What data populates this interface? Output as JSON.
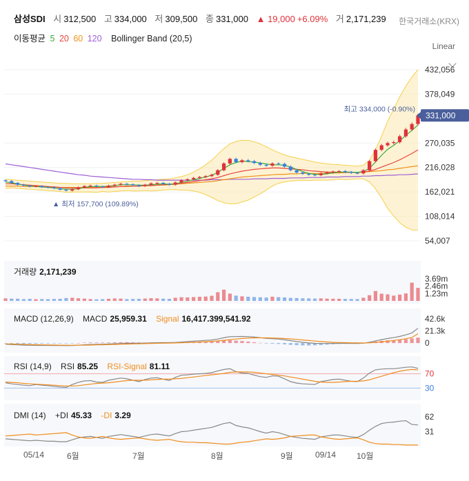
{
  "header": {
    "title": "삼성SDI",
    "open_label": "시",
    "open": "312,500",
    "high_label": "고",
    "high": "334,000",
    "low_label": "저",
    "low": "309,500",
    "close_label": "종",
    "close": "331,000",
    "change": "▲ 19,000",
    "change_pct": "+6.09%",
    "volume_label": "거",
    "volume": "2,171,239",
    "exchange": "한국거래소(KRX)"
  },
  "indicators": {
    "ma_label": "이동평균",
    "ma": [
      {
        "period": "5",
        "color": "#3aaa35"
      },
      {
        "period": "20",
        "color": "#e8453c"
      },
      {
        "period": "60",
        "color": "#f0911c"
      },
      {
        "period": "120",
        "color": "#9c5fd6"
      }
    ],
    "bollinger": "Bollinger Band (20,5)"
  },
  "scale_mode": "Linear",
  "colors": {
    "up": "#e0313a",
    "down": "#3b7ddd",
    "band": "#fbe9b0",
    "band_line": "#f5cf4a",
    "price_tag": "#4a5f9c"
  },
  "chart_data": {
    "type": "line",
    "x_ticks": [
      "05/14",
      "6월",
      "7월",
      "8월",
      "9월",
      "09/14",
      "10월"
    ],
    "main": {
      "ylim": [
        54007,
        432056
      ],
      "y_ticks": [
        "432,056",
        "378,049",
        "270,035",
        "216,028",
        "162,021",
        "108,014",
        "54,007"
      ],
      "current_price": "331,000",
      "high_annotation": "최고 334,000 (-0.90%)",
      "low_annotation": "▲ 최저 157,700 (109.89%)",
      "close": [
        186000,
        182000,
        178000,
        176000,
        174000,
        175000,
        173000,
        172000,
        170000,
        167000,
        165000,
        168000,
        172000,
        175000,
        176000,
        174000,
        173000,
        176000,
        178000,
        180000,
        179000,
        177000,
        175000,
        178000,
        181000,
        182000,
        180000,
        178000,
        183000,
        188000,
        190000,
        193000,
        195000,
        197000,
        200000,
        210000,
        225000,
        235000,
        228000,
        232000,
        230000,
        226000,
        222000,
        220000,
        225000,
        224000,
        218000,
        210000,
        205000,
        202000,
        200000,
        199000,
        203000,
        205000,
        207000,
        208000,
        206000,
        204000,
        203000,
        210000,
        230000,
        255000,
        265000,
        270000,
        272000,
        285000,
        300000,
        312000,
        331000
      ],
      "ma5": [
        184000,
        182000,
        180000,
        177000,
        175000,
        174000,
        173000,
        172000,
        171000,
        169000,
        168000,
        168000,
        169000,
        172000,
        174000,
        174000,
        174000,
        175000,
        176000,
        178000,
        178000,
        178000,
        177000,
        177000,
        178000,
        179000,
        180000,
        179000,
        180000,
        183000,
        186000,
        189000,
        192000,
        195000,
        199000,
        205000,
        214000,
        222000,
        227000,
        230000,
        229000,
        228000,
        226000,
        224000,
        222000,
        222000,
        221000,
        217000,
        212000,
        207000,
        203000,
        201000,
        201000,
        202000,
        204000,
        206000,
        206000,
        206000,
        205000,
        207000,
        214000,
        228000,
        243000,
        256000,
        265000,
        275000,
        287000,
        298000,
        310000
      ],
      "ma20": [
        180000,
        180000,
        179000,
        178000,
        177000,
        176000,
        175000,
        174000,
        173000,
        172000,
        171000,
        171000,
        171000,
        171000,
        171000,
        171000,
        172000,
        172000,
        173000,
        174000,
        175000,
        175000,
        175000,
        176000,
        176000,
        177000,
        178000,
        179000,
        180000,
        181000,
        183000,
        185000,
        187000,
        189000,
        191000,
        194000,
        198000,
        202000,
        205000,
        208000,
        210000,
        212000,
        213000,
        214000,
        215000,
        215000,
        214000,
        213000,
        212000,
        211000,
        209000,
        208000,
        207000,
        206000,
        206000,
        206000,
        205000,
        205000,
        205000,
        206000,
        208000,
        212000,
        217000,
        222000,
        227000,
        233000,
        240000,
        247000,
        255000
      ],
      "ma60": [
        175000,
        175000,
        175000,
        174000,
        174000,
        174000,
        173000,
        173000,
        173000,
        172000,
        172000,
        172000,
        172000,
        172000,
        172000,
        172000,
        173000,
        173000,
        173000,
        174000,
        174000,
        175000,
        175000,
        176000,
        176000,
        177000,
        177000,
        178000,
        179000,
        180000,
        181000,
        182000,
        183000,
        184000,
        185000,
        187000,
        189000,
        191000,
        193000,
        195000,
        196000,
        197000,
        198000,
        199000,
        200000,
        201000,
        201000,
        202000,
        202000,
        203000,
        203000,
        203000,
        203000,
        204000,
        204000,
        204000,
        205000,
        205000,
        205000,
        206000,
        207000,
        208000,
        209000,
        211000,
        212000,
        214000,
        216000,
        218000,
        220000
      ],
      "ma120": [
        224000,
        222000,
        220000,
        218000,
        216000,
        214000,
        212000,
        210000,
        208000,
        206000,
        204000,
        202000,
        200000,
        199000,
        197000,
        196000,
        195000,
        194000,
        193000,
        192000,
        191000,
        190000,
        190000,
        189000,
        189000,
        188000,
        188000,
        188000,
        188000,
        188000,
        188000,
        188000,
        188000,
        188000,
        189000,
        189000,
        189000,
        190000,
        190000,
        190000,
        190000,
        191000,
        191000,
        191000,
        192000,
        192000,
        192000,
        193000,
        193000,
        193000,
        194000,
        194000,
        194000,
        195000,
        195000,
        195000,
        196000,
        196000,
        196000,
        197000,
        197000,
        198000,
        198000,
        199000,
        199000,
        200000,
        200000,
        201000,
        202000
      ],
      "bb_upper": [
        190000,
        189000,
        188000,
        187000,
        186000,
        185000,
        184000,
        183000,
        182000,
        181000,
        181000,
        180000,
        180000,
        180000,
        180000,
        181000,
        181000,
        182000,
        183000,
        184000,
        185000,
        186000,
        186000,
        187000,
        188000,
        189000,
        190000,
        191000,
        193000,
        196000,
        200000,
        206000,
        213000,
        222000,
        232000,
        245000,
        258000,
        268000,
        274000,
        276000,
        276000,
        273000,
        268000,
        262000,
        255000,
        249000,
        244000,
        240000,
        237000,
        234000,
        231000,
        228000,
        226000,
        224000,
        223000,
        222000,
        221000,
        220000,
        219000,
        221000,
        232000,
        255000,
        285000,
        318000,
        345000,
        372000,
        396000,
        416000,
        432000
      ],
      "bb_lower": [
        170000,
        171000,
        170000,
        169000,
        168000,
        167000,
        166000,
        165000,
        164000,
        163000,
        161000,
        162000,
        162000,
        162000,
        162000,
        161000,
        163000,
        162000,
        163000,
        164000,
        165000,
        164000,
        164000,
        165000,
        164000,
        165000,
        166000,
        167000,
        167000,
        166000,
        166000,
        164000,
        161000,
        156000,
        150000,
        143000,
        138000,
        136000,
        136000,
        140000,
        144000,
        151000,
        158000,
        166000,
        175000,
        181000,
        184000,
        186000,
        187000,
        188000,
        187000,
        188000,
        188000,
        188000,
        189000,
        190000,
        189000,
        190000,
        191000,
        191000,
        184000,
        169000,
        149000,
        126000,
        109000,
        94000,
        84000,
        78000,
        78000
      ]
    },
    "volume": {
      "label": "거래량",
      "value": "2,171,239",
      "y_ticks": [
        "3.69m",
        "2.46m",
        "1.23m"
      ],
      "ylim": [
        0,
        3690000
      ],
      "values": [
        420000,
        380000,
        360000,
        300000,
        340000,
        280000,
        310000,
        290000,
        330000,
        350000,
        480000,
        520000,
        440000,
        380000,
        300000,
        260000,
        290000,
        350000,
        410000,
        380000,
        300000,
        320000,
        340000,
        390000,
        450000,
        420000,
        370000,
        350000,
        520000,
        610000,
        580000,
        640000,
        690000,
        720000,
        850000,
        1450000,
        1880000,
        1210000,
        880000,
        760000,
        690000,
        640000,
        600000,
        560000,
        700000,
        620000,
        580000,
        500000,
        470000,
        430000,
        410000,
        390000,
        420000,
        380000,
        360000,
        350000,
        330000,
        320000,
        300000,
        520000,
        950000,
        1650000,
        1200000,
        1100000,
        880000,
        1050000,
        1250000,
        3050000,
        2171239
      ]
    },
    "macd": {
      "title": "MACD (12,26,9)",
      "label": "MACD",
      "value": "25,959.31",
      "signal_label": "Signal",
      "signal_value": "16,417.399,541.92",
      "y_ticks": [
        "42.6k",
        "21.3k",
        "0"
      ],
      "ylim": [
        -12000,
        42600
      ],
      "macd": [
        -2000,
        -2600,
        -3200,
        -3600,
        -3900,
        -4000,
        -4100,
        -4100,
        -4200,
        -4400,
        -4500,
        -4200,
        -3700,
        -3000,
        -2500,
        -2300,
        -2100,
        -1700,
        -1200,
        -700,
        -400,
        -300,
        -300,
        -100,
        300,
        600,
        700,
        700,
        1100,
        1800,
        2500,
        3300,
        4000,
        4700,
        5500,
        7000,
        9400,
        11200,
        11400,
        11600,
        11300,
        10600,
        9500,
        8300,
        7700,
        7000,
        5700,
        4200,
        2700,
        1400,
        300,
        -500,
        -700,
        -700,
        -600,
        -500,
        -500,
        -600,
        -700,
        -200,
        1400,
        3900,
        6100,
        8000,
        9600,
        11600,
        14400,
        17800,
        25959
      ],
      "signal": [
        -1500,
        -1700,
        -2000,
        -2300,
        -2600,
        -2900,
        -3100,
        -3300,
        -3500,
        -3700,
        -3800,
        -3900,
        -3800,
        -3700,
        -3500,
        -3200,
        -3000,
        -2700,
        -2400,
        -2100,
        -1800,
        -1500,
        -1300,
        -1000,
        -700,
        -400,
        -200,
        0,
        300,
        600,
        1000,
        1400,
        1900,
        2400,
        3000,
        3800,
        4900,
        6100,
        7100,
        8000,
        8700,
        9100,
        9200,
        9100,
        8900,
        8500,
        8000,
        7300,
        6400,
        5500,
        4500,
        3500,
        2700,
        2000,
        1400,
        1000,
        700,
        400,
        200,
        100,
        400,
        1100,
        2100,
        3300,
        4600,
        6000,
        7700,
        9700,
        16417
      ]
    },
    "rsi": {
      "title": "RSI (14,9)",
      "label": "RSI",
      "value": "85.25",
      "signal_label": "RSI-Signal",
      "signal_value": "81.11",
      "y_ticks": [
        "70",
        "30"
      ],
      "ylim": [
        0,
        100
      ],
      "rsi": [
        45,
        42,
        40,
        38,
        37,
        40,
        38,
        37,
        35,
        33,
        32,
        40,
        46,
        50,
        51,
        47,
        46,
        52,
        55,
        58,
        56,
        52,
        48,
        54,
        58,
        59,
        55,
        51,
        60,
        66,
        67,
        69,
        70,
        71,
        73,
        78,
        82,
        84,
        76,
        72,
        71,
        66,
        62,
        60,
        64,
        63,
        56,
        48,
        44,
        42,
        41,
        40,
        48,
        51,
        54,
        55,
        52,
        49,
        48,
        58,
        72,
        81,
        83,
        84,
        84,
        86,
        88,
        89,
        85
      ],
      "signal": [
        47,
        46,
        45,
        43,
        42,
        41,
        40,
        39,
        38,
        37,
        36,
        36,
        37,
        39,
        41,
        43,
        44,
        45,
        47,
        49,
        51,
        52,
        52,
        52,
        53,
        54,
        55,
        55,
        56,
        57,
        59,
        61,
        63,
        65,
        67,
        69,
        71,
        74,
        75,
        75,
        75,
        74,
        72,
        70,
        68,
        66,
        64,
        61,
        58,
        55,
        52,
        49,
        47,
        46,
        46,
        47,
        48,
        49,
        49,
        50,
        53,
        58,
        63,
        68,
        73,
        77,
        80,
        82,
        81
      ]
    },
    "dmi": {
      "title": "DMI (14)",
      "plus_label": "+DI",
      "plus_value": "45.33",
      "minus_label": "-DI",
      "minus_value": "3.29",
      "y_ticks": [
        "62",
        "31"
      ],
      "ylim": [
        0,
        75
      ],
      "plus_di": [
        16,
        15,
        14,
        13,
        12,
        13,
        12,
        11,
        11,
        10,
        10,
        14,
        18,
        20,
        21,
        19,
        17,
        21,
        23,
        25,
        23,
        21,
        19,
        22,
        25,
        26,
        24,
        22,
        27,
        31,
        32,
        34,
        36,
        38,
        40,
        44,
        48,
        50,
        44,
        41,
        39,
        35,
        31,
        28,
        31,
        29,
        25,
        21,
        19,
        17,
        16,
        15,
        20,
        22,
        24,
        24,
        22,
        20,
        19,
        25,
        34,
        42,
        48,
        50,
        51,
        53,
        54,
        46,
        45
      ],
      "minus_di": [
        22,
        23,
        24,
        25,
        26,
        24,
        25,
        26,
        27,
        28,
        29,
        24,
        20,
        18,
        17,
        19,
        21,
        18,
        16,
        15,
        16,
        17,
        18,
        16,
        14,
        13,
        14,
        15,
        12,
        10,
        9,
        9,
        8,
        8,
        7,
        6,
        5,
        5,
        7,
        9,
        10,
        12,
        14,
        16,
        15,
        16,
        18,
        21,
        22,
        23,
        24,
        24,
        20,
        18,
        16,
        15,
        16,
        17,
        18,
        14,
        9,
        6,
        5,
        5,
        4,
        4,
        3,
        3,
        3
      ]
    }
  }
}
